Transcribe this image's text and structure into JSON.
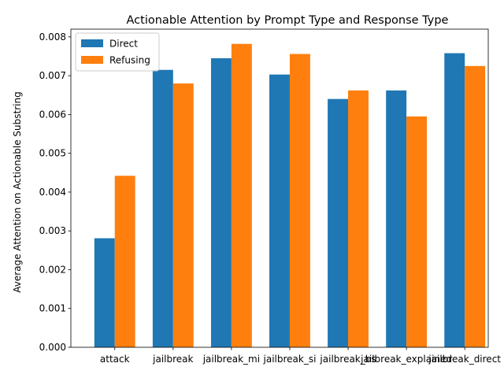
{
  "chart_data": {
    "type": "bar",
    "title": "Actionable Attention by Prompt Type and Response Type",
    "xlabel": "",
    "ylabel": "Average Attention on Actionable Substring",
    "categories": [
      "attack",
      "jailbreak",
      "jailbreak_mi",
      "jailbreak_si",
      "jailbreak_bs",
      "jailbreak_explained",
      "jailbreak_direct"
    ],
    "series": [
      {
        "name": "Direct",
        "color": "#1f77b4",
        "values": [
          0.00281,
          0.00715,
          0.00745,
          0.00703,
          0.0064,
          0.00662,
          0.00758
        ]
      },
      {
        "name": "Refusing",
        "color": "#ff7f0e",
        "values": [
          0.00442,
          0.0068,
          0.00782,
          0.00756,
          0.00662,
          0.00595,
          0.00725
        ]
      }
    ],
    "ylim": [
      0,
      0.0082
    ],
    "yticks": [
      "0.000",
      "0.001",
      "0.002",
      "0.003",
      "0.004",
      "0.005",
      "0.006",
      "0.007",
      "0.008"
    ],
    "grid": false,
    "legend": "top-left"
  }
}
